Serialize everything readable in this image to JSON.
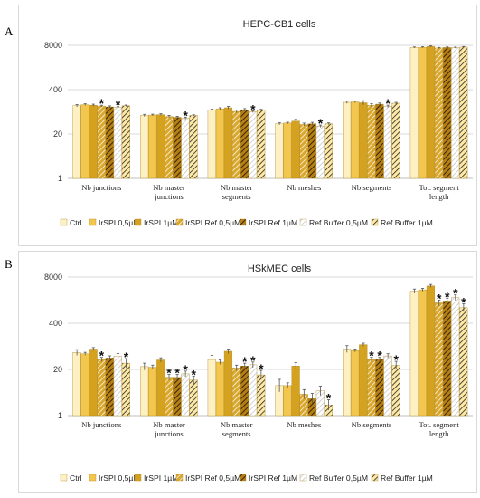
{
  "panels": [
    {
      "letter": "A"
    },
    {
      "letter": "B"
    }
  ],
  "colors": {
    "ctrl": "#fdf0c2",
    "irspi05": "#f3c64d",
    "irspi1": "#d5a21f",
    "irspiref05": "#d9a72b",
    "irspiref1": "#b57f14",
    "refbuffer05": "#c8c8c8",
    "refbuffer1": "#fde9a5",
    "grid": "#d9d9d9",
    "axis": "#bfbfbf",
    "border": "#d9d9d9"
  },
  "chart_data": [
    {
      "type": "bar",
      "title": "HEPC-CB1 cells",
      "yscale": "log",
      "ylim": [
        1,
        8000
      ],
      "yticks": [
        "1",
        "20",
        "400",
        "8000"
      ],
      "categories": [
        "Nb junctions",
        "Nb master junctions",
        "Nb master segments",
        "Nb meshes",
        "Nb segments",
        "Tot. segment length"
      ],
      "series": [
        {
          "name": "Ctrl",
          "values": [
            135,
            70,
            100,
            40,
            170,
            6900
          ],
          "errors": [
            1.08,
            1.08,
            1.08,
            1.07,
            1.08,
            1.04
          ]
        },
        {
          "name": "IrSPI 0,5µM",
          "values": [
            145,
            72,
            110,
            42,
            175,
            7000
          ],
          "errors": [
            1.06,
            1.06,
            1.07,
            1.06,
            1.07,
            1.04
          ]
        },
        {
          "name": "IrSPI 1µM",
          "values": [
            140,
            74,
            118,
            48,
            165,
            7400
          ],
          "errors": [
            1.07,
            1.06,
            1.09,
            1.12,
            1.15,
            1.04
          ]
        },
        {
          "name": "IrSPI Ref 0,5µM",
          "values": [
            132,
            65,
            92,
            38,
            140,
            6700
          ],
          "errors": [
            1.06,
            1.08,
            1.1,
            1.1,
            1.1,
            1.04
          ]
        },
        {
          "name": "IrSPI Ref 1µM",
          "values": [
            125,
            62,
            102,
            40,
            150,
            6900
          ],
          "errors": [
            1.07,
            1.07,
            1.09,
            1.1,
            1.08,
            1.04
          ]
        },
        {
          "name": "Ref Buffer 0,5µM",
          "values": [
            120,
            58,
            90,
            34,
            130,
            6850
          ],
          "errors": [
            1.06,
            1.08,
            1.06,
            1.08,
            1.08,
            1.04
          ]
        },
        {
          "name": "Ref Buffer 1µM",
          "values": [
            135,
            70,
            100,
            40,
            160,
            7100
          ],
          "errors": [
            1.05,
            1.05,
            1.06,
            1.06,
            1.06,
            1.04
          ]
        }
      ],
      "annotations": [
        {
          "category": 0,
          "series": 3,
          "text": "*"
        },
        {
          "category": 0,
          "series": 5,
          "text": "*"
        },
        {
          "category": 1,
          "series": 5,
          "text": "*"
        },
        {
          "category": 2,
          "series": 5,
          "text": "*"
        },
        {
          "category": 3,
          "series": 5,
          "text": "*"
        },
        {
          "category": 4,
          "series": 5,
          "text": "*"
        }
      ],
      "legend_position": "bottom",
      "grid": true
    },
    {
      "type": "bar",
      "title": "HSkMEC cells",
      "yscale": "log",
      "ylim": [
        1,
        8000
      ],
      "yticks": [
        "1",
        "20",
        "400",
        "8000"
      ],
      "categories": [
        "Nb junctions",
        "Nb master junctions",
        "Nb master segments",
        "Nb meshes",
        "Nb segments",
        "Tot. segment length"
      ],
      "series": [
        {
          "name": "Ctrl",
          "values": [
            60,
            24,
            38,
            7,
            75,
            3200
          ],
          "errors": [
            1.2,
            1.25,
            1.3,
            1.5,
            1.25,
            1.15
          ]
        },
        {
          "name": "IrSPI 0,5µM",
          "values": [
            55,
            23,
            32,
            7,
            68,
            3500
          ],
          "errors": [
            1.1,
            1.15,
            1.15,
            1.2,
            1.1,
            1.1
          ]
        },
        {
          "name": "IrSPI 1µM",
          "values": [
            75,
            37,
            65,
            25,
            100,
            4500
          ],
          "errors": [
            1.1,
            1.15,
            1.15,
            1.25,
            1.1,
            1.1
          ]
        },
        {
          "name": "IrSPI Ref 0,5µM",
          "values": [
            38,
            12,
            22,
            4,
            38,
            1500
          ],
          "errors": [
            1.15,
            1.2,
            1.2,
            1.35,
            1.15,
            1.2
          ]
        },
        {
          "name": "IrSPI Ref 1µM",
          "values": [
            42,
            12,
            25,
            3,
            38,
            1700
          ],
          "errors": [
            1.15,
            1.2,
            1.2,
            1.4,
            1.15,
            1.2
          ]
        },
        {
          "name": "Ref Buffer 0,5µM",
          "values": [
            47,
            15,
            27,
            5,
            48,
            2100
          ],
          "errors": [
            1.2,
            1.2,
            1.2,
            1.35,
            1.15,
            1.2
          ]
        },
        {
          "name": "Ref Buffer 1µM",
          "values": [
            30,
            10,
            14,
            2,
            26,
            1100
          ],
          "errors": [
            1.35,
            1.3,
            1.35,
            1.4,
            1.3,
            1.3
          ]
        }
      ],
      "annotations": [
        {
          "category": 0,
          "series": 3,
          "text": "*"
        },
        {
          "category": 0,
          "series": 6,
          "text": "*"
        },
        {
          "category": 1,
          "series": 3,
          "text": "*"
        },
        {
          "category": 1,
          "series": 4,
          "text": "*"
        },
        {
          "category": 1,
          "series": 5,
          "text": "*"
        },
        {
          "category": 1,
          "series": 6,
          "text": "*"
        },
        {
          "category": 2,
          "series": 4,
          "text": "*"
        },
        {
          "category": 2,
          "series": 5,
          "text": "*"
        },
        {
          "category": 2,
          "series": 6,
          "text": "*"
        },
        {
          "category": 3,
          "series": 6,
          "text": "*"
        },
        {
          "category": 4,
          "series": 3,
          "text": "*"
        },
        {
          "category": 4,
          "series": 4,
          "text": "*"
        },
        {
          "category": 4,
          "series": 6,
          "text": "*"
        },
        {
          "category": 5,
          "series": 3,
          "text": "*"
        },
        {
          "category": 5,
          "series": 4,
          "text": "*"
        },
        {
          "category": 5,
          "series": 5,
          "text": "*"
        },
        {
          "category": 5,
          "series": 6,
          "text": "*"
        }
      ],
      "legend_position": "bottom",
      "grid": true
    }
  ]
}
